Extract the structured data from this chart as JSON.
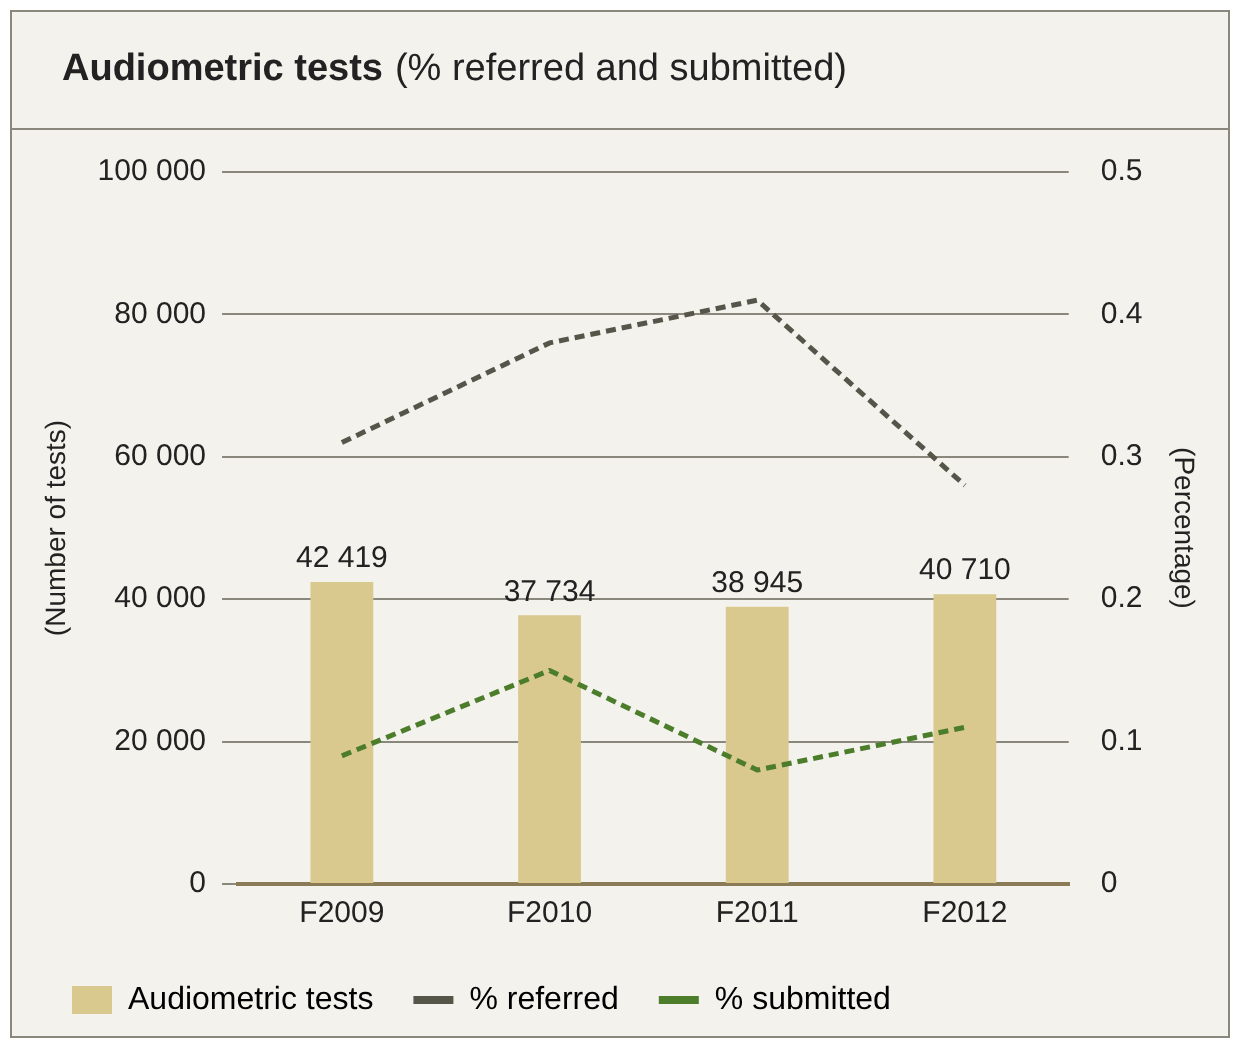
{
  "chart_data": {
    "type": "bar",
    "title": "Audiometric tests",
    "subtitle": "(% referred and submitted)",
    "ylabel": "(Number of tests)",
    "y2label": "(Percentage)",
    "categories": [
      "F2009",
      "F2010",
      "F2011",
      "F2012"
    ],
    "series": [
      {
        "name": "Audiometric tests",
        "color": "#d9c98e",
        "values": [
          42419,
          37734,
          38945,
          40710
        ],
        "value_labels": [
          "42 419",
          "37 734",
          "38 945",
          "40 710"
        ]
      },
      {
        "name": "% referred",
        "type": "line",
        "axis": "y2",
        "color": "#55554a",
        "line_style": "dashed",
        "values": [
          0.31,
          0.38,
          0.41,
          0.28
        ]
      },
      {
        "name": "% submitted",
        "type": "line",
        "axis": "y2",
        "color": "#4b7d2b",
        "line_style": "dashed",
        "values": [
          0.09,
          0.15,
          0.08,
          0.11
        ]
      }
    ],
    "ylim": [
      0,
      100000
    ],
    "yticks": [
      {
        "value": 0,
        "label": "0"
      },
      {
        "value": 20000,
        "label": "20 000"
      },
      {
        "value": 40000,
        "label": "40 000"
      },
      {
        "value": 60000,
        "label": "60 000"
      },
      {
        "value": 80000,
        "label": "80 000"
      },
      {
        "value": 100000,
        "label": "100 000"
      }
    ],
    "y2lim": [
      0,
      0.5
    ],
    "y2ticks": [
      0,
      0.1,
      0.2,
      0.3,
      0.4,
      0.5
    ],
    "grid": "y",
    "legend": "bottom",
    "marker": "none"
  }
}
